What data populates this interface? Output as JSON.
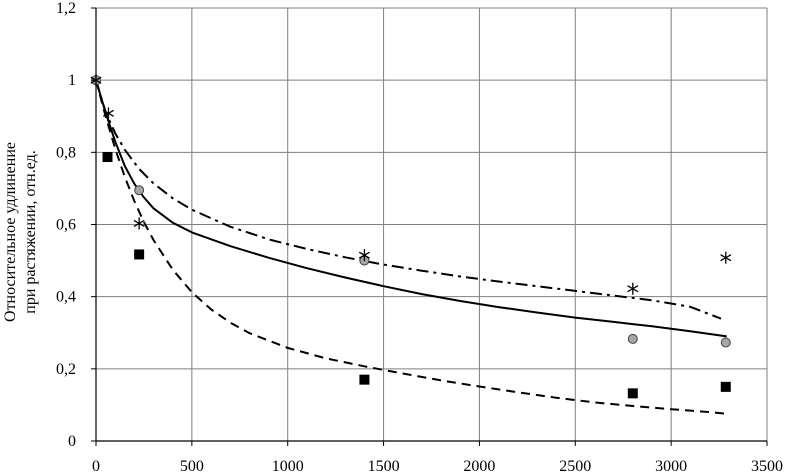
{
  "chart_data": {
    "type": "scatter",
    "title": "",
    "xlabel": "",
    "ylabel": "Относительное удлинение при растяжении, отн.ед.",
    "ylabel_lines": [
      "Относительное удлинение",
      "при растяжении, отн.ед."
    ],
    "xlim": [
      0,
      3500
    ],
    "ylim": [
      0,
      1.2
    ],
    "x_ticks": [
      0,
      500,
      1000,
      1500,
      2000,
      2500,
      3000,
      3500
    ],
    "x_tick_labels": [
      "0",
      "500",
      "1000",
      "1500",
      "2000",
      "2500",
      "3000",
      "3500"
    ],
    "y_ticks": [
      0,
      0.2,
      0.4,
      0.6,
      0.8,
      1.0,
      1.2
    ],
    "y_tick_labels": [
      "0",
      "0,2",
      "0,4",
      "0,6",
      "0,8",
      "1",
      "1,2"
    ],
    "grid": true,
    "legend": "none",
    "series": [
      {
        "marker": "circle",
        "color": "#a6a6a6",
        "points": [
          [
            0,
            1.0
          ],
          [
            225,
            0.695
          ],
          [
            1400,
            0.5
          ],
          [
            2800,
            0.283
          ],
          [
            3285,
            0.273
          ]
        ],
        "fit_line": {
          "style": "dashdot",
          "x": [
            0,
            50,
            100,
            150,
            225,
            300,
            400,
            500,
            700,
            900,
            1100,
            1300,
            1500,
            1700,
            1900,
            2100,
            2300,
            2500,
            2700,
            2900,
            3100,
            3260
          ],
          "y": [
            1.0,
            0.912,
            0.853,
            0.807,
            0.754,
            0.714,
            0.673,
            0.641,
            0.594,
            0.559,
            0.532,
            0.509,
            0.489,
            0.472,
            0.456,
            0.442,
            0.429,
            0.416,
            0.403,
            0.39,
            0.372,
            0.339
          ]
        }
      },
      {
        "marker": "asterisk",
        "color": "#000000",
        "points": [
          [
            0,
            1.0
          ],
          [
            65,
            0.908
          ],
          [
            225,
            0.603
          ],
          [
            1400,
            0.515
          ],
          [
            2800,
            0.422
          ],
          [
            3285,
            0.508
          ]
        ],
        "fit_line": {
          "style": "solid",
          "x": [
            0,
            50,
            100,
            150,
            200,
            250,
            300,
            400,
            500,
            700,
            900,
            1100,
            1300,
            1500,
            1700,
            1900,
            2100,
            2300,
            2500,
            2700,
            2900,
            3100,
            3290
          ],
          "y": [
            1.0,
            0.91,
            0.83,
            0.762,
            0.713,
            0.675,
            0.645,
            0.605,
            0.578,
            0.54,
            0.508,
            0.479,
            0.453,
            0.429,
            0.407,
            0.388,
            0.371,
            0.356,
            0.342,
            0.33,
            0.318,
            0.304,
            0.29
          ]
        }
      },
      {
        "marker": "square",
        "color": "#000000",
        "points": [
          [
            60,
            0.787
          ],
          [
            225,
            0.517
          ],
          [
            1400,
            0.17
          ],
          [
            2800,
            0.132
          ],
          [
            3285,
            0.15
          ]
        ],
        "fit_line": {
          "style": "dashed",
          "x": [
            0,
            50,
            100,
            150,
            200,
            250,
            300,
            400,
            500,
            600,
            700,
            800,
            1000,
            1200,
            1400,
            1600,
            1800,
            2000,
            2200,
            2400,
            2600,
            2800,
            3000,
            3200,
            3280
          ],
          "y": [
            1.0,
            0.9,
            0.81,
            0.732,
            0.665,
            0.607,
            0.557,
            0.475,
            0.412,
            0.365,
            0.328,
            0.299,
            0.258,
            0.229,
            0.207,
            0.187,
            0.168,
            0.151,
            0.135,
            0.12,
            0.107,
            0.097,
            0.088,
            0.08,
            0.076
          ]
        }
      }
    ]
  }
}
